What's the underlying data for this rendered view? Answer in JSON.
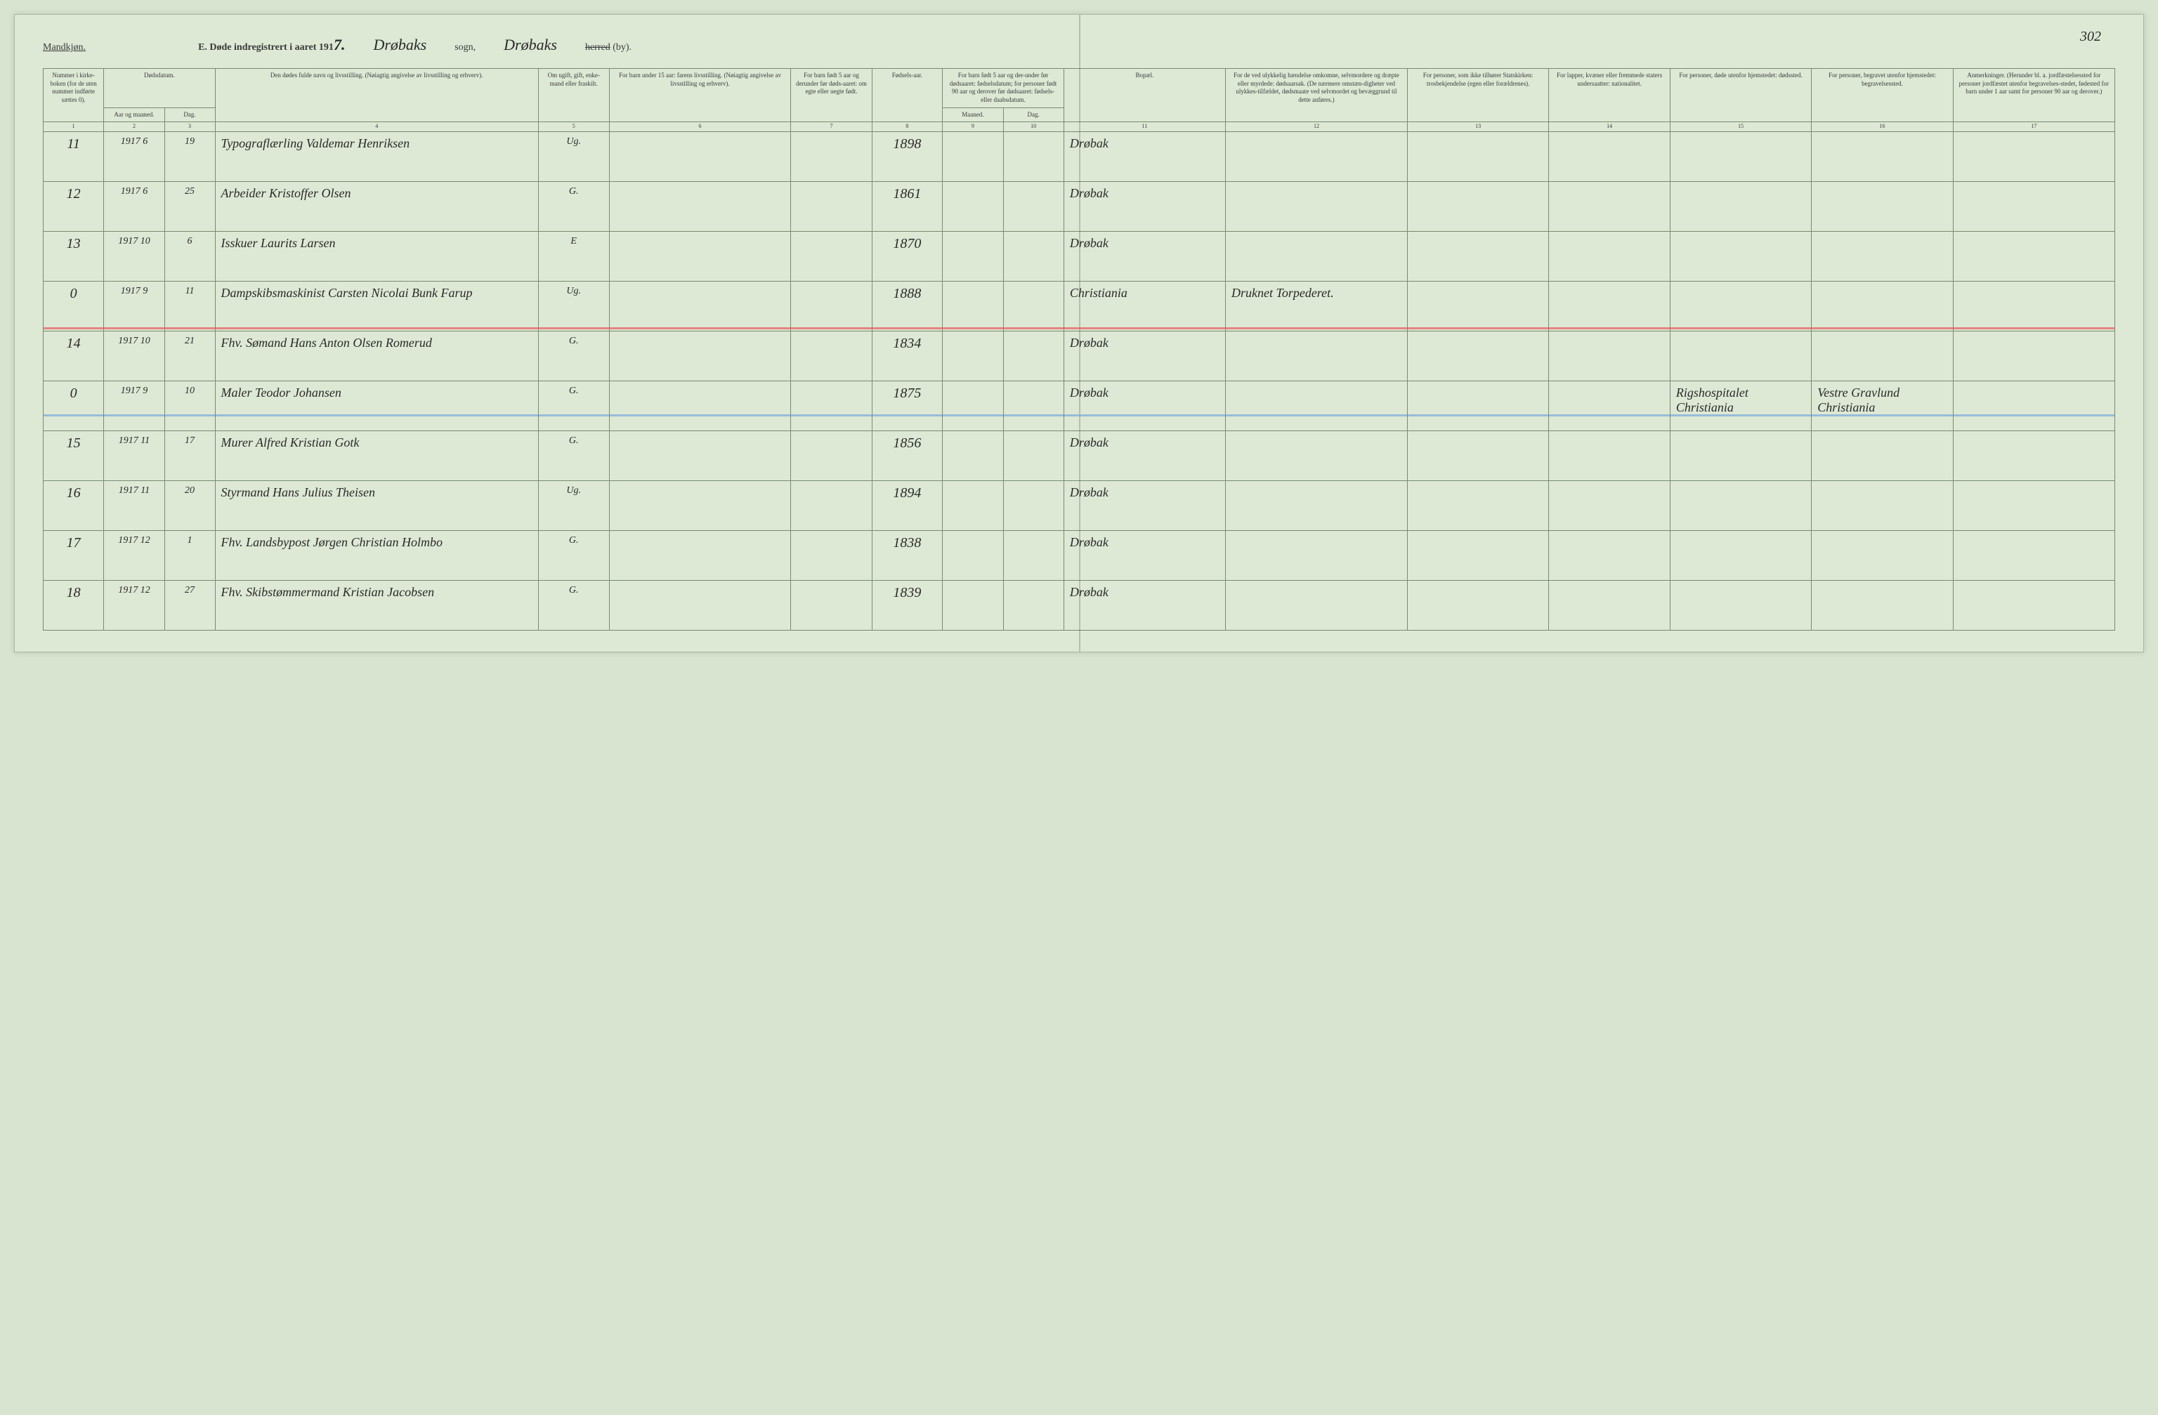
{
  "page_number": "302",
  "header": {
    "gender_label": "Mandkjøn.",
    "section_letter": "E.",
    "title_prefix": "Døde indregistrert i aaret 191",
    "year_suffix": "7.",
    "sogn_name": "Drøbaks",
    "sogn_label": "sogn,",
    "herred_name": "Drøbaks",
    "herred_struck": "herred",
    "by_label": "(by)."
  },
  "columns": {
    "c1": {
      "label": "Nummer i kirke-boken (for de uten nummer indførte sættes 0).",
      "num": "1"
    },
    "c2": {
      "label": "Dødsdatum.",
      "sub_a": "Aar og maaned.",
      "sub_b": "Dag.",
      "num_a": "2",
      "num_b": "3"
    },
    "c4": {
      "label": "Den dødes fulde navn og livsstilling. (Nøiagtig angivelse av livsstilling og erhverv).",
      "num": "4"
    },
    "c5": {
      "label": "Om ugift, gift, enke-mand eller fraskilt.",
      "num": "5"
    },
    "c6": {
      "label": "For barn under 15 aar: farens livsstilling. (Nøiagtig angivelse av livsstilling og erhverv).",
      "num": "6"
    },
    "c7": {
      "label": "For barn født 5 aar og derunder før døds-aaret: om egte eller uegte født.",
      "num": "7"
    },
    "c8": {
      "label": "Fødsels-aar.",
      "num": "8"
    },
    "c9": {
      "label": "For barn født 5 aar og der-under før dødsaaret: fødselsdatum; for personer født 90 aar og derover før dødsaaret: fødsels- eller daabsdatum.",
      "sub_a": "Maaned.",
      "sub_b": "Dag.",
      "num_a": "9",
      "num_b": "10"
    },
    "c11": {
      "label": "Bopæl.",
      "num": "11"
    },
    "c12": {
      "label": "For de ved ulykkelig hændelse omkomne, selvmordere og dræpte eller myrdede: dødsaarsak. (De nærmere omstæn-digheter ved ulykkes-tilfældet, dødsmaate ved selvmordet og bevæggrund til dette anføres.)",
      "num": "12"
    },
    "c13": {
      "label": "For personer, som ikke tilhører Statskirken: trosbekjendelse (egen eller forældrenes).",
      "num": "13"
    },
    "c14": {
      "label": "For lapper, kvæner eller fremmede staters undersaatter: nationalitet.",
      "num": "14"
    },
    "c15": {
      "label": "For personer, døde utenfor hjemstedet: dødssted.",
      "num": "15"
    },
    "c16": {
      "label": "For personer, begravet utenfor hjemstedet: begravelsessted.",
      "num": "16"
    },
    "c17": {
      "label": "Anmerkninger. (Herunder bl. a. jordfæstelsessted for personer jordfæstet utenfor begravelses-stedet, fødested for barn under 1 aar samt for personer 90 aar og derover.)",
      "num": "17"
    }
  },
  "rows": [
    {
      "n": "11",
      "yr": "1917",
      "mo": "6",
      "day": "19",
      "name": "Typograflærling Valdemar Henriksen",
      "stat": "Ug.",
      "born": "1898",
      "res": "Drøbak"
    },
    {
      "n": "12",
      "yr": "1917",
      "mo": "6",
      "day": "25",
      "name": "Arbeider Kristoffer Olsen",
      "stat": "G.",
      "born": "1861",
      "res": "Drøbak"
    },
    {
      "n": "13",
      "yr": "1917",
      "mo": "10",
      "day": "6",
      "name": "Isskuer Laurits Larsen",
      "stat": "E",
      "born": "1870",
      "res": "Drøbak"
    },
    {
      "n": "0",
      "yr": "1917",
      "mo": "9",
      "day": "11",
      "name": "Dampskibsmaskinist Carsten Nicolai Bunk Farup",
      "stat": "Ug.",
      "born": "1888",
      "res": "Christiania",
      "c12": "Druknet Torpederet.",
      "hl": "red"
    },
    {
      "n": "14",
      "yr": "1917",
      "mo": "10",
      "day": "21",
      "name": "Fhv. Sømand Hans Anton Olsen Romerud",
      "stat": "G.",
      "born": "1834",
      "res": "Drøbak"
    },
    {
      "n": "0",
      "yr": "1917",
      "mo": "9",
      "day": "10",
      "name": "Maler Teodor Johansen",
      "stat": "G.",
      "born": "1875",
      "res": "Drøbak",
      "c15": "Rigshospitalet Christiania",
      "c16": "Vestre Gravlund Christiania",
      "hl": "blue"
    },
    {
      "n": "15",
      "yr": "1917",
      "mo": "11",
      "day": "17",
      "name": "Murer Alfred Kristian Gotk",
      "stat": "G.",
      "born": "1856",
      "res": "Drøbak"
    },
    {
      "n": "16",
      "yr": "1917",
      "mo": "11",
      "day": "20",
      "name": "Styrmand Hans Julius Theisen",
      "stat": "Ug.",
      "born": "1894",
      "res": "Drøbak"
    },
    {
      "n": "17",
      "yr": "1917",
      "mo": "12",
      "day": "1",
      "name": "Fhv. Landsbypost Jørgen Christian Holmbo",
      "stat": "G.",
      "born": "1838",
      "res": "Drøbak"
    },
    {
      "n": "18",
      "yr": "1917",
      "mo": "12",
      "day": "27",
      "name": "Fhv. Skibstømmermand Kristian Jacobsen",
      "stat": "G.",
      "born": "1839",
      "res": "Drøbak"
    }
  ],
  "colors": {
    "page_bg": "#dde8d5",
    "border": "#7a8a70",
    "ink": "#2a2a2a",
    "red_hl": "#e85a5a",
    "blue_hl": "#7aa8d8"
  }
}
